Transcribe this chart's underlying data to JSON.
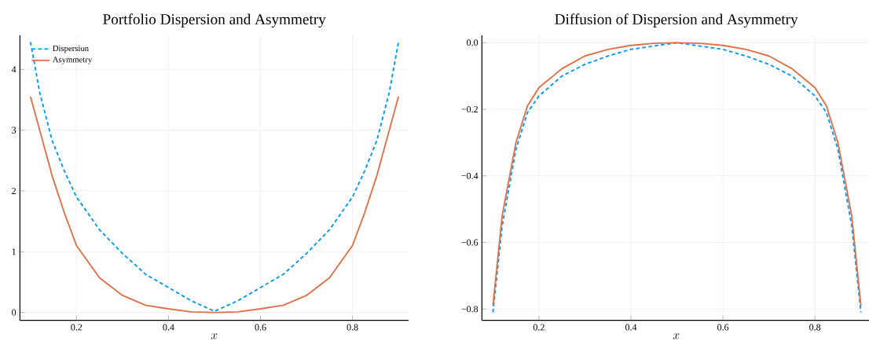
{
  "chart_data": [
    {
      "type": "line",
      "title": "Portfolio Dispersion and Asymmetry",
      "xlabel": "x",
      "x": [
        0.1,
        0.12,
        0.147,
        0.174,
        0.2,
        0.25,
        0.3,
        0.35,
        0.4,
        0.45,
        0.5,
        0.55,
        0.6,
        0.65,
        0.7,
        0.75,
        0.8,
        0.826,
        0.853,
        0.88,
        0.9
      ],
      "series": [
        {
          "name": "Dispersion",
          "color": "#009afa",
          "line_style": "dashed",
          "values": [
            4.45,
            3.62,
            2.83,
            2.32,
            1.9,
            1.36,
            0.97,
            0.63,
            0.41,
            0.19,
            0.02,
            0.19,
            0.41,
            0.63,
            0.97,
            1.36,
            1.9,
            2.32,
            2.83,
            3.62,
            4.45
          ]
        },
        {
          "name": "Asymmetry",
          "color": "#e26f46",
          "line_style": "solid",
          "values": [
            3.55,
            3.0,
            2.25,
            1.63,
            1.1,
            0.57,
            0.28,
            0.12,
            0.06,
            0.01,
            0.0,
            0.01,
            0.06,
            0.12,
            0.28,
            0.57,
            1.1,
            1.63,
            2.25,
            3.0,
            3.55
          ]
        }
      ],
      "xlim": [
        0.077,
        0.922
      ],
      "ylim": [
        -0.13,
        4.56
      ],
      "xticks": [
        0.2,
        0.4,
        0.6,
        0.8
      ],
      "yticks": [
        0,
        1,
        2,
        3,
        4
      ],
      "grid": true,
      "legend": "top left"
    },
    {
      "type": "line",
      "title": "Diffusion of Dispersion and Asymmetry",
      "xlabel": "x",
      "x": [
        0.1,
        0.12,
        0.15,
        0.175,
        0.2,
        0.25,
        0.3,
        0.35,
        0.4,
        0.45,
        0.5,
        0.55,
        0.6,
        0.65,
        0.7,
        0.75,
        0.8,
        0.825,
        0.85,
        0.88,
        0.9
      ],
      "series": [
        {
          "color": "#009afa",
          "line_style": "dashed",
          "values": [
            -0.81,
            -0.55,
            -0.32,
            -0.21,
            -0.16,
            -0.1,
            -0.065,
            -0.04,
            -0.02,
            -0.01,
            0.0,
            -0.01,
            -0.02,
            -0.04,
            -0.065,
            -0.1,
            -0.16,
            -0.21,
            -0.32,
            -0.55,
            -0.81
          ]
        },
        {
          "color": "#e26f46",
          "line_style": "solid",
          "values": [
            -0.79,
            -0.52,
            -0.3,
            -0.19,
            -0.135,
            -0.078,
            -0.04,
            -0.02,
            -0.008,
            -0.002,
            0.0,
            -0.002,
            -0.008,
            -0.02,
            -0.04,
            -0.078,
            -0.135,
            -0.19,
            -0.3,
            -0.52,
            -0.79
          ]
        }
      ],
      "xlim": [
        0.076,
        0.921
      ],
      "ylim": [
        -0.834,
        0.022
      ],
      "xticks": [
        0.2,
        0.4,
        0.6,
        0.8
      ],
      "yticks": [
        {
          "value": -0.8,
          "label": "−0.8"
        },
        {
          "value": -0.6,
          "label": "−0.6"
        },
        {
          "value": -0.4,
          "label": "−0.4"
        },
        {
          "value": -0.2,
          "label": "−0.2"
        },
        {
          "value": 0,
          "label": "0.0"
        }
      ],
      "grid": true
    }
  ]
}
